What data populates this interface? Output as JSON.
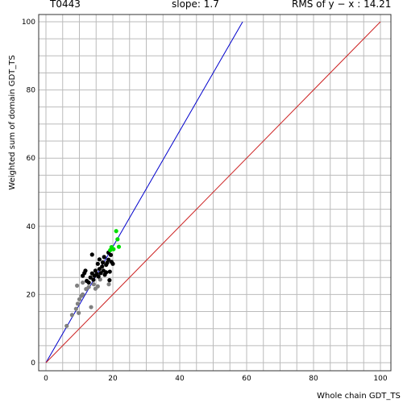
{
  "header": {
    "target": "T0443",
    "slope": "slope: 1.7",
    "rms": "RMS of  y − x : 14.21"
  },
  "chart_data": {
    "type": "scatter",
    "title": "",
    "xlabel": "Whole chain GDT_TS",
    "ylabel": "Weighted sum of domain GDT_TS",
    "xlim": [
      0,
      100
    ],
    "ylim": [
      0,
      100
    ],
    "xticks": [
      "0",
      "20",
      "40",
      "60",
      "80",
      "100"
    ],
    "yticks": [
      "0",
      "20",
      "40",
      "60",
      "80",
      "100"
    ],
    "grid": true,
    "colors": {
      "grid": "#bbbbbb",
      "fit_line": "#0000cc",
      "identity_line": "#cc2222",
      "gray_points": "#808080",
      "black_points": "#000000",
      "green_points": "#00dd00"
    },
    "lines": [
      {
        "kind": "fit",
        "slope": 1.7,
        "from_x": 0,
        "to_x": 58.8
      },
      {
        "kind": "identity",
        "slope": 1.0,
        "from_x": 0,
        "to_x": 100
      }
    ],
    "series": [
      {
        "color": "gray",
        "points": [
          [
            6.2,
            10.8
          ],
          [
            7.8,
            14.0
          ],
          [
            9.0,
            15.8
          ],
          [
            9.5,
            17.3
          ],
          [
            10.0,
            18.6
          ],
          [
            9.3,
            22.6
          ],
          [
            10.6,
            19.6
          ],
          [
            11.0,
            20.0
          ],
          [
            11.0,
            23.5
          ],
          [
            12.0,
            21.6
          ],
          [
            12.8,
            22.2
          ],
          [
            13.5,
            16.3
          ],
          [
            14.3,
            23.0
          ],
          [
            14.8,
            21.7
          ],
          [
            15.5,
            22.4
          ],
          [
            16.2,
            24.4
          ],
          [
            18.8,
            23.0
          ],
          [
            9.8,
            14.6
          ]
        ]
      },
      {
        "color": "black",
        "points": [
          [
            11.0,
            25.5
          ],
          [
            11.5,
            26.3
          ],
          [
            11.8,
            27.0
          ],
          [
            12.2,
            24.0
          ],
          [
            12.8,
            23.5
          ],
          [
            13.3,
            25.0
          ],
          [
            13.8,
            26.2
          ],
          [
            14.2,
            24.3
          ],
          [
            14.5,
            25.5
          ],
          [
            14.8,
            27.0
          ],
          [
            15.2,
            26.0
          ],
          [
            15.7,
            25.3
          ],
          [
            16.0,
            27.5
          ],
          [
            16.4,
            26.3
          ],
          [
            16.8,
            28.2
          ],
          [
            17.2,
            27.0
          ],
          [
            17.6,
            25.8
          ],
          [
            18.0,
            28.7
          ],
          [
            18.3,
            29.3
          ],
          [
            18.7,
            30.2
          ],
          [
            19.1,
            26.7
          ],
          [
            19.6,
            29.6
          ],
          [
            20.0,
            29.0
          ],
          [
            19.4,
            31.6
          ],
          [
            18.7,
            32.3
          ],
          [
            13.8,
            31.7
          ],
          [
            16.0,
            30.3
          ],
          [
            17.0,
            29.4
          ],
          [
            18.0,
            26.5
          ],
          [
            19.0,
            24.2
          ],
          [
            15.5,
            29.0
          ],
          [
            17.4,
            31.0
          ]
        ]
      },
      {
        "color": "green",
        "points": [
          [
            19.2,
            33.0
          ],
          [
            19.6,
            33.9
          ],
          [
            20.2,
            33.3
          ],
          [
            21.0,
            38.6
          ],
          [
            21.4,
            36.2
          ],
          [
            21.8,
            34.0
          ]
        ]
      }
    ]
  }
}
